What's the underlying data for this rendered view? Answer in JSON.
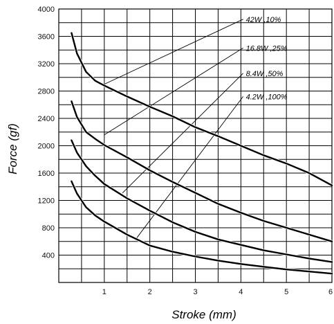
{
  "chart_data": {
    "type": "line",
    "title": "",
    "xlabel": "Stroke (mm)",
    "ylabel": "Force (gf)",
    "xlim": [
      0,
      6
    ],
    "ylim": [
      0,
      4000
    ],
    "x_ticks": [
      "1",
      "2",
      "3",
      "4",
      "5",
      "6"
    ],
    "y_ticks": [
      "400",
      "800",
      "1200",
      "1600",
      "2000",
      "2400",
      "2800",
      "3200",
      "3600",
      "4000"
    ],
    "grid": true,
    "series": [
      {
        "name": "42W ,10%",
        "points": [
          [
            0.28,
            3650
          ],
          [
            0.4,
            3350
          ],
          [
            0.6,
            3080
          ],
          [
            0.8,
            2950
          ],
          [
            1.0,
            2880
          ],
          [
            1.5,
            2720
          ],
          [
            2.0,
            2570
          ],
          [
            2.5,
            2430
          ],
          [
            3.0,
            2270
          ],
          [
            3.5,
            2140
          ],
          [
            4.0,
            2000
          ],
          [
            4.5,
            1860
          ],
          [
            5.0,
            1740
          ],
          [
            5.5,
            1600
          ],
          [
            6.0,
            1420
          ]
        ]
      },
      {
        "name": "16.8W ,25%",
        "points": [
          [
            0.28,
            2650
          ],
          [
            0.4,
            2420
          ],
          [
            0.6,
            2200
          ],
          [
            0.8,
            2100
          ],
          [
            1.0,
            2010
          ],
          [
            1.5,
            1830
          ],
          [
            2.0,
            1640
          ],
          [
            2.5,
            1470
          ],
          [
            3.0,
            1310
          ],
          [
            3.5,
            1150
          ],
          [
            4.0,
            1020
          ],
          [
            4.5,
            900
          ],
          [
            5.0,
            800
          ],
          [
            5.5,
            700
          ],
          [
            6.0,
            600
          ]
        ]
      },
      {
        "name": "8.4W ,50%",
        "points": [
          [
            0.28,
            2080
          ],
          [
            0.4,
            1900
          ],
          [
            0.6,
            1700
          ],
          [
            0.8,
            1560
          ],
          [
            1.0,
            1440
          ],
          [
            1.5,
            1230
          ],
          [
            2.0,
            1050
          ],
          [
            2.5,
            880
          ],
          [
            3.0,
            740
          ],
          [
            3.5,
            630
          ],
          [
            4.0,
            550
          ],
          [
            4.5,
            470
          ],
          [
            5.0,
            410
          ],
          [
            5.5,
            350
          ],
          [
            6.0,
            300
          ]
        ]
      },
      {
        "name": "4.2W ,100%",
        "points": [
          [
            0.28,
            1480
          ],
          [
            0.4,
            1300
          ],
          [
            0.6,
            1100
          ],
          [
            0.8,
            980
          ],
          [
            1.0,
            890
          ],
          [
            1.5,
            700
          ],
          [
            2.0,
            540
          ],
          [
            2.5,
            450
          ],
          [
            3.0,
            380
          ],
          [
            3.5,
            320
          ],
          [
            4.0,
            270
          ],
          [
            4.5,
            230
          ],
          [
            5.0,
            190
          ],
          [
            5.5,
            160
          ],
          [
            6.0,
            130
          ]
        ]
      }
    ],
    "callouts": [
      {
        "series": 0,
        "label": "42W ,10%",
        "from": [
          1.0,
          2900
        ],
        "to": [
          4.05,
          3850
        ]
      },
      {
        "series": 1,
        "label": "16.8W ,25%",
        "from": [
          1.0,
          2160
        ],
        "to": [
          4.05,
          3430
        ]
      },
      {
        "series": 2,
        "label": "8.4W ,50%",
        "from": [
          1.4,
          1310
        ],
        "to": [
          4.05,
          3060
        ]
      },
      {
        "series": 3,
        "label": "4.2W ,100%",
        "from": [
          1.7,
          640
        ],
        "to": [
          4.05,
          2720
        ]
      }
    ],
    "colors": {
      "line": "#000000",
      "grid": "#000000"
    }
  }
}
